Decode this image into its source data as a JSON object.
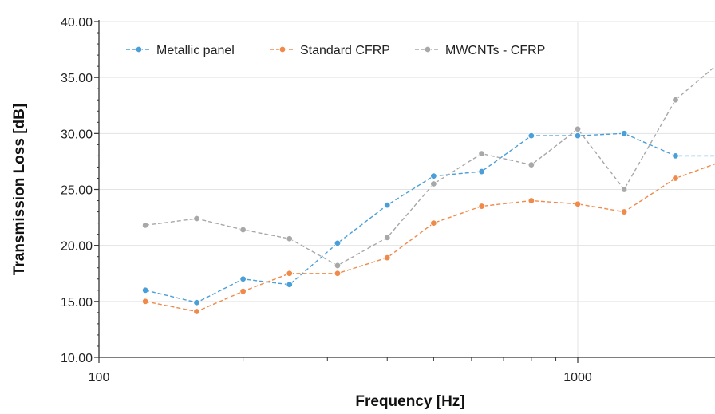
{
  "chart_data": {
    "type": "line",
    "title": "",
    "xlabel": "Frequency [Hz]",
    "ylabel": "Transmission Loss [dB]",
    "x_scale": "log",
    "xlim": [
      100,
      2000
    ],
    "ylim": [
      10,
      40
    ],
    "x_ticks": [
      100,
      1000
    ],
    "x_tick_labels": [
      "100",
      "1000"
    ],
    "y_ticks": [
      10,
      15,
      20,
      25,
      30,
      35,
      40
    ],
    "y_tick_labels": [
      "10.00",
      "15.00",
      "20.00",
      "25.00",
      "30.00",
      "35.00",
      "40.00"
    ],
    "grid": true,
    "legend_position": "top-left",
    "x": [
      125,
      160,
      200,
      250,
      315,
      400,
      500,
      630,
      800,
      1000,
      1250,
      1600,
      2000
    ],
    "series": [
      {
        "name": "Metallic panel",
        "color": "#4a9fd8",
        "values": [
          16.0,
          14.9,
          17.0,
          16.5,
          20.2,
          23.6,
          26.2,
          26.6,
          29.8,
          29.8,
          30.0,
          28.0,
          28.0
        ]
      },
      {
        "name": "Standard CFRP",
        "color": "#f08a4b",
        "values": [
          15.0,
          14.1,
          15.9,
          17.5,
          17.5,
          18.9,
          22.0,
          23.5,
          24.0,
          23.7,
          23.0,
          26.0,
          27.5
        ]
      },
      {
        "name": "MWCNTs - CFRP",
        "color": "#a8a8a8",
        "values": [
          21.8,
          22.4,
          21.4,
          20.6,
          18.2,
          20.7,
          25.5,
          28.2,
          27.2,
          30.4,
          25.0,
          33.0,
          36.5
        ]
      }
    ]
  }
}
